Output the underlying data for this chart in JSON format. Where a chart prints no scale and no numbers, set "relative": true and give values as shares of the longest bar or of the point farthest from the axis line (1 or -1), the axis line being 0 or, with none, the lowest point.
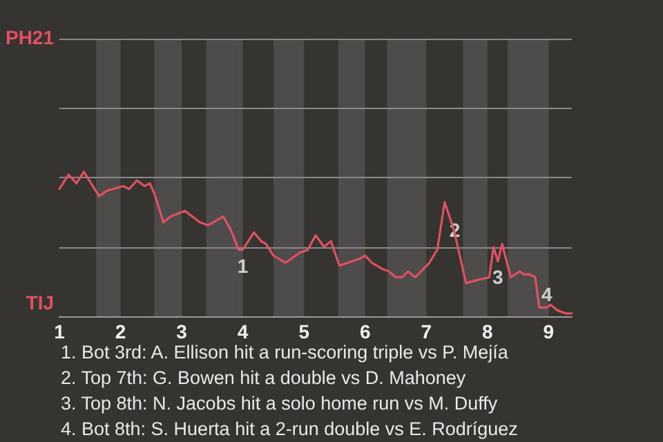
{
  "chart_data": {
    "type": "line",
    "relative": true,
    "x": [
      1,
      1.15,
      1.28,
      1.4,
      1.65,
      1.78,
      2.05,
      2.14,
      2.27,
      2.39,
      2.48,
      2.57,
      2.7,
      2.82,
      3.05,
      3.3,
      3.43,
      3.68,
      3.8,
      3.93,
      4,
      4.18,
      4.3,
      4.38,
      4.5,
      4.7,
      4.93,
      5.06,
      5.19,
      5.33,
      5.44,
      5.58,
      5.92,
      6,
      6.11,
      6.27,
      6.39,
      6.5,
      6.61,
      6.7,
      6.82,
      7.05,
      7.18,
      7.3,
      7.45,
      7.65,
      7.83,
      8.03,
      8.1,
      8.17,
      8.24,
      8.38,
      8.53,
      8.6,
      8.69,
      8.78,
      8.85,
      8.97,
      9.03,
      9.15,
      9.28,
      9.38
    ],
    "series": [
      {
        "color": "#e0505f",
        "values": [
          0.88,
          0.98,
          0.92,
          1,
          0.83,
          0.87,
          0.9,
          0.88,
          0.94,
          0.9,
          0.92,
          0.83,
          0.65,
          0.69,
          0.73,
          0.65,
          0.63,
          0.69,
          0.6,
          0.46,
          0.46,
          0.58,
          0.52,
          0.5,
          0.42,
          0.37,
          0.44,
          0.46,
          0.56,
          0.48,
          0.52,
          0.35,
          0.4,
          0.42,
          0.37,
          0.33,
          0.31,
          0.27,
          0.27,
          0.31,
          0.27,
          0.37,
          0.46,
          0.79,
          0.6,
          0.23,
          0.25,
          0.27,
          0.48,
          0.38,
          0.5,
          0.27,
          0.31,
          0.29,
          0.29,
          0.27,
          0.06,
          0.06,
          0.08,
          0.04,
          0.02,
          0.02
        ]
      }
    ],
    "xlim": [
      1,
      9.38
    ],
    "xticks": [
      1,
      2,
      3,
      4,
      5,
      6,
      7,
      8,
      9
    ],
    "ref_lines": [
      {
        "axis": "y",
        "value": 0.48,
        "color": "#8a8a8a"
      },
      {
        "axis": "y",
        "value": 0.96,
        "color": "#8a8a8a"
      },
      {
        "axis": "y",
        "value": 1.44,
        "color": "#8a8a8a"
      },
      {
        "axis": "y",
        "value": 1.92,
        "color": "#8a8a8a"
      }
    ],
    "marker": "none",
    "line_style": "solid",
    "bands": [
      {
        "axis": "x",
        "from": 1.6,
        "to": 2,
        "color": "#4d4c4a"
      },
      {
        "axis": "x",
        "from": 2.55,
        "to": 3,
        "color": "#4d4c4a"
      },
      {
        "axis": "x",
        "from": 3.4,
        "to": 4,
        "color": "#4d4c4a"
      },
      {
        "axis": "x",
        "from": 4.5,
        "to": 5,
        "color": "#4d4c4a"
      },
      {
        "axis": "x",
        "from": 5.56,
        "to": 6,
        "color": "#4d4c4a"
      },
      {
        "axis": "x",
        "from": 6.36,
        "to": 7,
        "color": "#4d4c4a"
      },
      {
        "axis": "x",
        "from": 7.6,
        "to": 8,
        "color": "#4d4c4a"
      },
      {
        "axis": "x",
        "from": 8.33,
        "to": 9,
        "color": "#4d4c4a"
      }
    ],
    "annotations": [
      "PH21",
      "TIJ",
      {
        "text": "1",
        "x": 4,
        "y": 0.46
      },
      {
        "text": "2",
        "x": 7.3,
        "y": 0.79
      },
      {
        "text": "3",
        "x": 8.17,
        "y": 0.38
      },
      {
        "text": "4",
        "x": 8.97,
        "y": 0.06
      },
      "1. Bot 3rd: A. Ellison hit a run-scoring triple vs P. Mejía",
      "2. Top 7th: G. Bowen hit a double vs D. Mahoney",
      "3. Top 8th: N. Jacobs hit a solo home run vs M. Duffy",
      "4. Bot 8th: S. Huerta hit a 2-run double vs E. Rodríguez"
    ]
  }
}
